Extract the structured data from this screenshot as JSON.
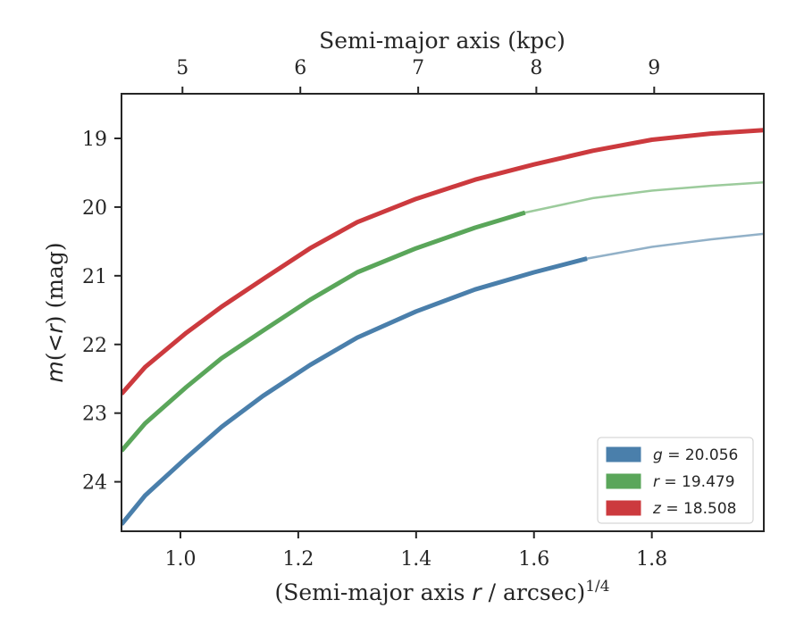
{
  "chart_data": {
    "type": "line",
    "title": "",
    "xlabel": "(Semi-major axis r / arcsec)^1/4",
    "xlabel_parts": {
      "prefix": "(Semi-major axis ",
      "var": "r",
      "mid": " / arcsec)",
      "sup": "1/4"
    },
    "ylabel": "m(<r) (mag)",
    "ylabel_parts": {
      "m": "m",
      "open": "(",
      "lt": "<",
      "r": "r",
      "close": ")",
      "unit": " (mag)"
    },
    "top_xlabel": "Semi-major axis (kpc)",
    "xlim": [
      0.9,
      1.99
    ],
    "ylim": [
      24.72,
      18.35
    ],
    "y_inverted": true,
    "x_ticks": [
      1.0,
      1.2,
      1.4,
      1.6,
      1.8
    ],
    "x_tick_labels": [
      "1.0",
      "1.2",
      "1.4",
      "1.6",
      "1.8"
    ],
    "y_ticks": [
      19,
      20,
      21,
      22,
      23,
      24
    ],
    "y_tick_labels": [
      "19",
      "20",
      "21",
      "22",
      "23",
      "24"
    ],
    "top_ticks_x": [
      1.0035,
      1.2035,
      1.4035,
      1.604,
      1.804
    ],
    "top_tick_labels": [
      "5",
      "6",
      "7",
      "8",
      "9"
    ],
    "legend_position": "lower-right",
    "series": [
      {
        "name": "g = 20.056",
        "legend_var": "g",
        "legend_value": "= 20.056",
        "color": "#4a7fab",
        "faded_color": "#92b1c8",
        "solid_end_x": 1.69,
        "points": [
          [
            0.9,
            24.62
          ],
          [
            0.94,
            24.2
          ],
          [
            1.01,
            23.65
          ],
          [
            1.07,
            23.2
          ],
          [
            1.14,
            22.75
          ],
          [
            1.22,
            22.3
          ],
          [
            1.3,
            21.9
          ],
          [
            1.4,
            21.52
          ],
          [
            1.5,
            21.2
          ],
          [
            1.6,
            20.95
          ],
          [
            1.69,
            20.75
          ],
          [
            1.8,
            20.58
          ],
          [
            1.9,
            20.47
          ],
          [
            1.99,
            20.39
          ]
        ]
      },
      {
        "name": "r = 19.479",
        "legend_var": "r",
        "legend_value": "= 19.479",
        "color": "#5aa65a",
        "faded_color": "#9ccb9c",
        "solid_end_x": 1.585,
        "points": [
          [
            0.9,
            23.55
          ],
          [
            0.94,
            23.15
          ],
          [
            1.01,
            22.62
          ],
          [
            1.07,
            22.2
          ],
          [
            1.14,
            21.8
          ],
          [
            1.22,
            21.35
          ],
          [
            1.3,
            20.95
          ],
          [
            1.4,
            20.6
          ],
          [
            1.5,
            20.3
          ],
          [
            1.585,
            20.08
          ],
          [
            1.7,
            19.87
          ],
          [
            1.8,
            19.76
          ],
          [
            1.9,
            19.69
          ],
          [
            1.99,
            19.64
          ]
        ]
      },
      {
        "name": "z = 18.508",
        "legend_var": "z",
        "legend_value": "= 18.508",
        "color": "#cc3a3e",
        "faded_color": "#e08f91",
        "solid_end_x": 1.99,
        "points": [
          [
            0.9,
            22.72
          ],
          [
            0.94,
            22.33
          ],
          [
            1.01,
            21.83
          ],
          [
            1.07,
            21.45
          ],
          [
            1.14,
            21.05
          ],
          [
            1.22,
            20.6
          ],
          [
            1.3,
            20.22
          ],
          [
            1.4,
            19.88
          ],
          [
            1.5,
            19.6
          ],
          [
            1.6,
            19.38
          ],
          [
            1.7,
            19.18
          ],
          [
            1.8,
            19.02
          ],
          [
            1.9,
            18.93
          ],
          [
            1.99,
            18.88
          ]
        ]
      }
    ]
  }
}
